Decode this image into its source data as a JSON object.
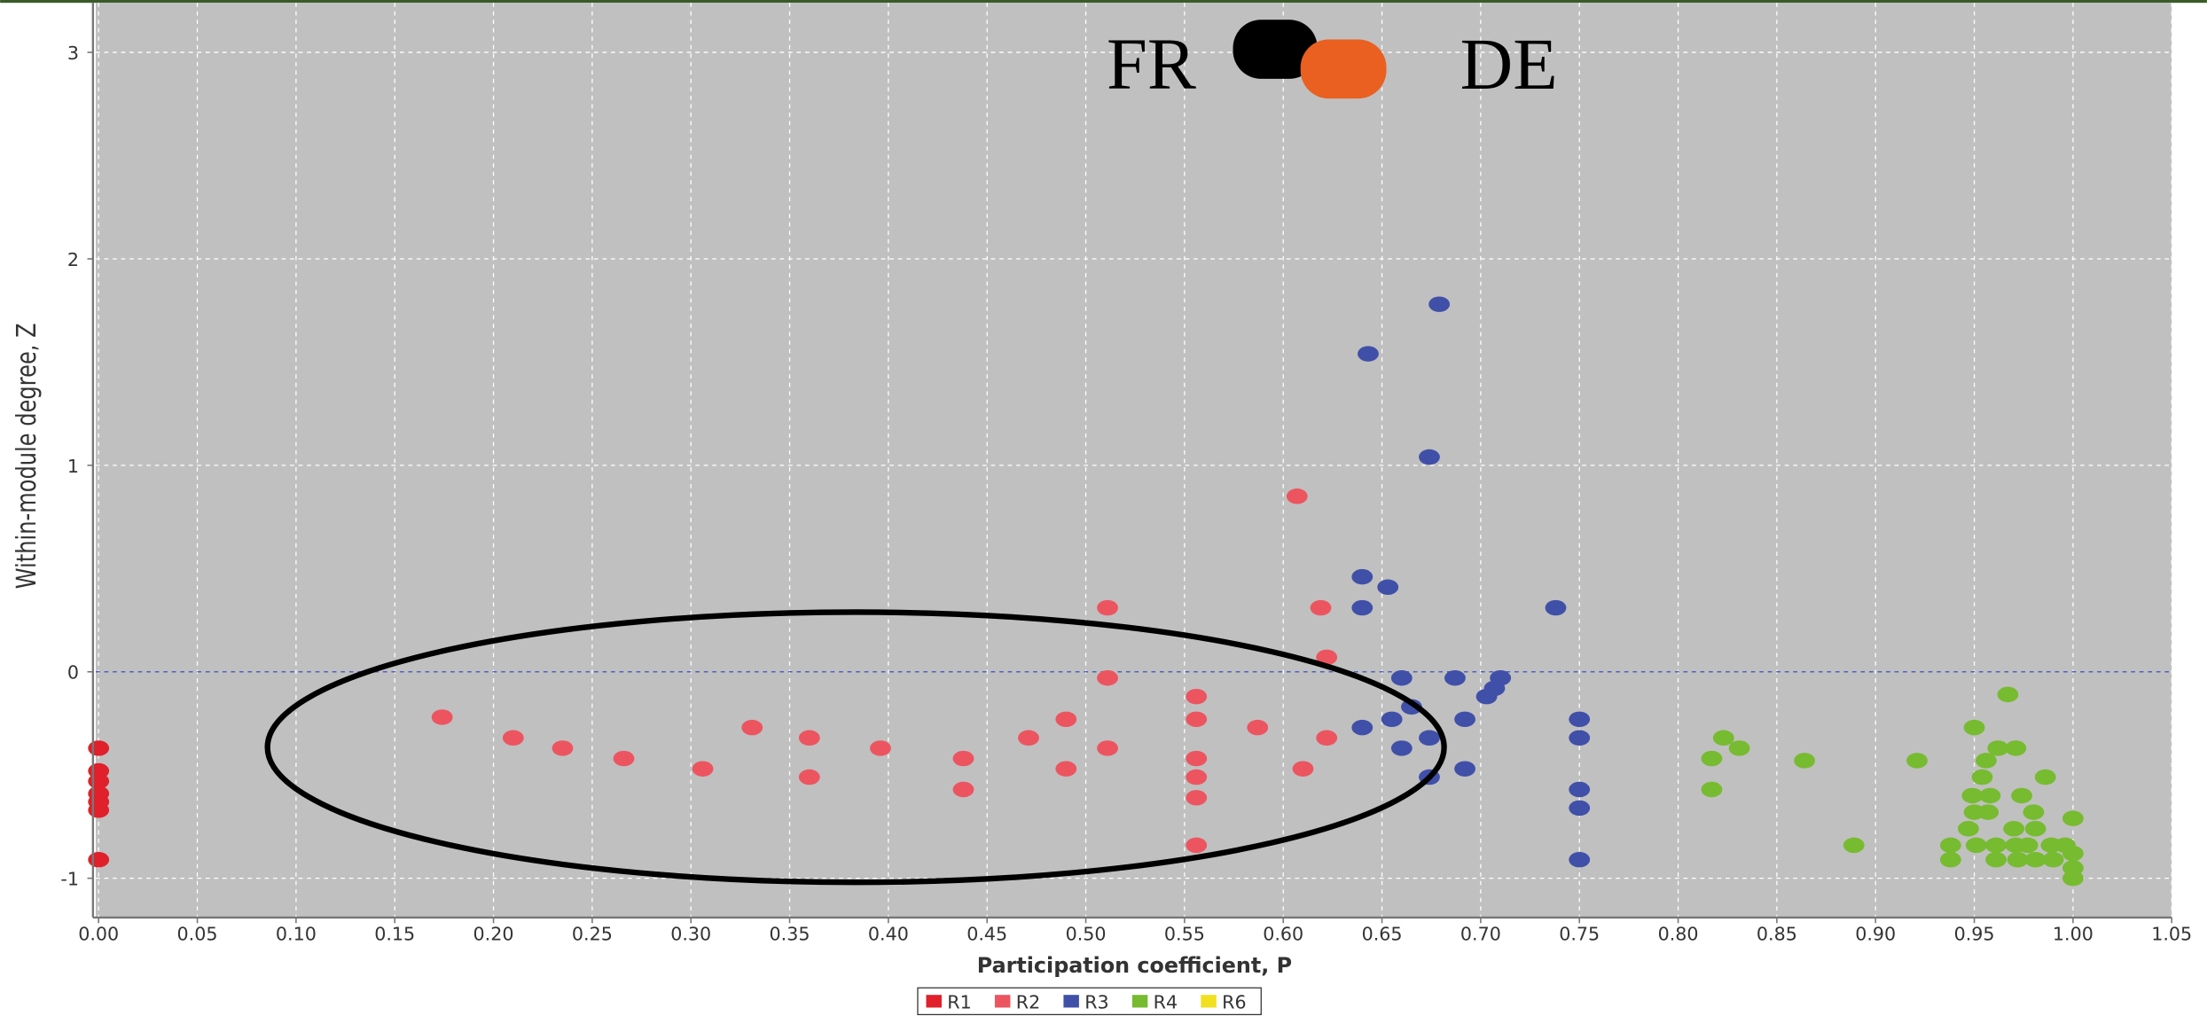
{
  "chart_data": {
    "type": "scatter",
    "x_label": "Participation coefficient, P",
    "y_label": "Within-module degree, Z",
    "annotations": [
      "FR",
      "DE"
    ],
    "xlim": [
      0,
      1.05
    ],
    "ylim": [
      -1.19,
      3.24
    ],
    "xticks": [
      {
        "value": 0,
        "label": "0.00"
      },
      {
        "value": 0.05,
        "label": "0.05"
      },
      {
        "value": 0.1,
        "label": "0.10"
      },
      {
        "value": 0.15,
        "label": "0.15"
      },
      {
        "value": 0.2,
        "label": "0.20"
      },
      {
        "value": 0.25,
        "label": "0.25"
      },
      {
        "value": 0.3,
        "label": "0.30"
      },
      {
        "value": 0.35,
        "label": "0.35"
      },
      {
        "value": 0.4,
        "label": "0.40"
      },
      {
        "value": 0.45,
        "label": "0.45"
      },
      {
        "value": 0.5,
        "label": "0.50"
      },
      {
        "value": 0.55,
        "label": "0.55"
      },
      {
        "value": 0.6,
        "label": "0.60"
      },
      {
        "value": 0.65,
        "label": "0.65"
      },
      {
        "value": 0.7,
        "label": "0.70"
      },
      {
        "value": 0.75,
        "label": "0.75"
      },
      {
        "value": 0.8,
        "label": "0.80"
      },
      {
        "value": 0.85,
        "label": "0.85"
      },
      {
        "value": 0.9,
        "label": "0.90"
      },
      {
        "value": 0.95,
        "label": "0.95"
      },
      {
        "value": 1,
        "label": "1.00"
      },
      {
        "value": 1.05,
        "label": "1.05"
      }
    ],
    "yticks": [
      -1,
      0,
      1,
      2,
      3
    ],
    "grid": true,
    "reference_line_y": 0,
    "legend": "bottom",
    "series": [
      {
        "name": "R1",
        "color": "#e0202a",
        "x": [
          0,
          0,
          0,
          0,
          0,
          0,
          0
        ],
        "y": [
          -0.37,
          -0.48,
          -0.53,
          -0.59,
          -0.63,
          -0.67,
          -0.91
        ]
      },
      {
        "name": "R2",
        "color": "#ec5560",
        "x": [
          0.174,
          0.21,
          0.235,
          0.266,
          0.306,
          0.331,
          0.36,
          0.36,
          0.396,
          0.438,
          0.438,
          0.471,
          0.49,
          0.49,
          0.511,
          0.511,
          0.511,
          0.556,
          0.556,
          0.556,
          0.556,
          0.556,
          0.556,
          0.587,
          0.607,
          0.61,
          0.619,
          0.622,
          0.622
        ],
        "y": [
          -0.22,
          -0.32,
          -0.37,
          -0.42,
          -0.47,
          -0.27,
          -0.32,
          -0.51,
          -0.37,
          -0.42,
          -0.57,
          -0.32,
          -0.23,
          -0.47,
          0.31,
          -0.03,
          -0.37,
          -0.12,
          -0.23,
          -0.42,
          -0.51,
          -0.61,
          -0.84,
          -0.27,
          0.85,
          -0.47,
          0.31,
          0.07,
          -0.32
        ]
      },
      {
        "name": "R3",
        "color": "#4050a8",
        "x": [
          0.679,
          0.643,
          0.674,
          0.64,
          0.653,
          0.64,
          0.738,
          0.66,
          0.687,
          0.71,
          0.707,
          0.703,
          0.665,
          0.655,
          0.692,
          0.64,
          0.674,
          0.66,
          0.692,
          0.674,
          0.75,
          0.75,
          0.75,
          0.75,
          0.75
        ],
        "y": [
          1.78,
          1.54,
          1.04,
          0.46,
          0.41,
          0.31,
          0.31,
          -0.03,
          -0.03,
          -0.03,
          -0.08,
          -0.12,
          -0.17,
          -0.23,
          -0.23,
          -0.27,
          -0.32,
          -0.37,
          -0.47,
          -0.51,
          -0.23,
          -0.32,
          -0.57,
          -0.66,
          -0.91
        ]
      },
      {
        "name": "R4",
        "color": "#77bb30",
        "x": [
          0.967,
          0.823,
          0.831,
          0.817,
          0.817,
          0.864,
          0.889,
          0.921,
          0.95,
          0.962,
          0.971,
          0.956,
          0.954,
          0.986,
          0.949,
          0.958,
          0.974,
          0.95,
          0.957,
          0.98,
          1,
          0.947,
          0.97,
          0.981,
          0.938,
          0.951,
          0.961,
          0.971,
          0.977,
          0.989,
          0.996,
          0.938,
          0.961,
          0.972,
          0.981,
          0.99,
          1,
          1,
          1
        ],
        "y": [
          -0.11,
          -0.32,
          -0.37,
          -0.42,
          -0.57,
          -0.43,
          -0.84,
          -0.43,
          -0.27,
          -0.37,
          -0.37,
          -0.43,
          -0.51,
          -0.51,
          -0.6,
          -0.6,
          -0.6,
          -0.68,
          -0.68,
          -0.68,
          -0.71,
          -0.76,
          -0.76,
          -0.76,
          -0.84,
          -0.84,
          -0.84,
          -0.84,
          -0.84,
          -0.84,
          -0.84,
          -0.91,
          -0.91,
          -0.91,
          -0.91,
          -0.91,
          -0.88,
          -0.95,
          -1
        ]
      },
      {
        "name": "R6",
        "color": "#f0e020",
        "x": [],
        "y": []
      }
    ]
  }
}
